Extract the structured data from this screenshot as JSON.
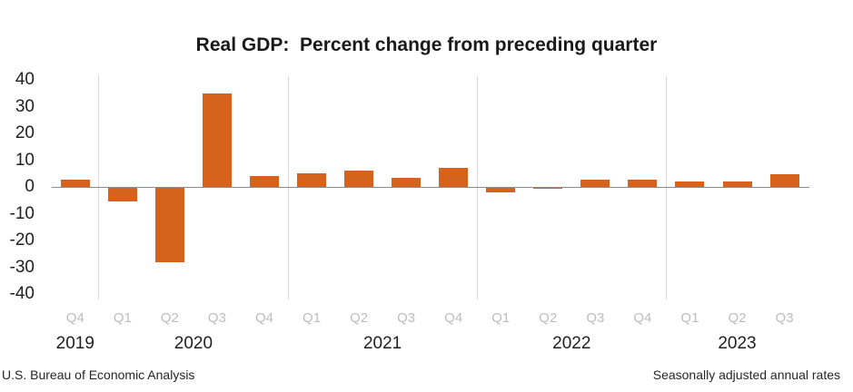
{
  "title": "Real GDP:  Percent change from preceding quarter",
  "footer": {
    "left": "U.S. Bureau of Economic Analysis",
    "right": "Seasonally adjusted annual rates"
  },
  "colors": {
    "bar": "#D6621C",
    "axis_line": "#8C8C8C",
    "gridline": "#DADADA",
    "tick_label": "#1f1f1f",
    "quarter_label": "#BDBDBD",
    "year_label": "#1f1f1f"
  },
  "chart_data": {
    "type": "bar",
    "title": "Real GDP:  Percent change from preceding quarter",
    "categories": [
      "Q4",
      "Q1",
      "Q2",
      "Q3",
      "Q4",
      "Q1",
      "Q2",
      "Q3",
      "Q4",
      "Q1",
      "Q2",
      "Q3",
      "Q4",
      "Q1",
      "Q2",
      "Q3"
    ],
    "values": [
      2.6,
      -5.3,
      -28.0,
      34.8,
      4.2,
      5.2,
      6.2,
      3.3,
      7.0,
      -2.0,
      -0.6,
      2.7,
      2.6,
      2.2,
      2.1,
      4.9
    ],
    "years": [
      {
        "label": "2019",
        "quarters": 1
      },
      {
        "label": "2020",
        "quarters": 4
      },
      {
        "label": "2021",
        "quarters": 4
      },
      {
        "label": "2022",
        "quarters": 4
      },
      {
        "label": "2023",
        "quarters": 3
      }
    ],
    "ylabel": "",
    "xlabel": "",
    "ylim": [
      -40,
      40
    ],
    "yticks": [
      40,
      30,
      20,
      10,
      0,
      -10,
      -20,
      -30,
      -40
    ],
    "grid": "vertical-year-separators-only",
    "legend": "none",
    "bar_color": "#D6621C",
    "units": "percent"
  }
}
